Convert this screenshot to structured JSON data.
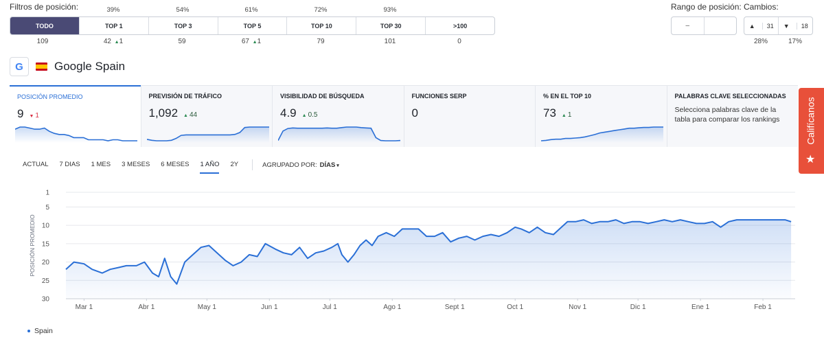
{
  "filters": {
    "title": "Filtros de posición:",
    "buttons": [
      {
        "label": "TODO",
        "pct": "",
        "count": "109",
        "delta": ""
      },
      {
        "label": "TOP 1",
        "pct": "39%",
        "count": "42",
        "delta": "1"
      },
      {
        "label": "TOP 3",
        "pct": "54%",
        "count": "59",
        "delta": ""
      },
      {
        "label": "TOP 5",
        "pct": "61%",
        "count": "67",
        "delta": "1"
      },
      {
        "label": "TOP 10",
        "pct": "72%",
        "count": "79",
        "delta": ""
      },
      {
        "label": "TOP 30",
        "pct": "93%",
        "count": "101",
        "delta": ""
      },
      {
        "label": ">100",
        "pct": "",
        "count": "0",
        "delta": ""
      }
    ]
  },
  "range": {
    "title": "Rango de posición:",
    "value": "–"
  },
  "changes": {
    "title": "Cambios:",
    "up": "31",
    "down": "18",
    "up_pct": "28%",
    "down_pct": "17%"
  },
  "engine": {
    "logo": "G",
    "name": "Google Spain"
  },
  "metrics": [
    {
      "label": "POSICIÓN PROMEDIO",
      "value": "9",
      "delta": "1",
      "direction": "down",
      "spark": [
        62,
        64,
        64,
        63,
        62,
        62,
        63,
        60,
        58,
        57,
        57,
        56,
        54,
        54,
        54,
        52,
        52,
        52,
        52,
        51,
        52,
        52,
        51,
        51,
        51,
        51
      ]
    },
    {
      "label": "PREVISIÓN DE TRÁFICO",
      "value": "1,092",
      "delta": "44",
      "direction": "up",
      "spark": [
        20,
        18,
        17,
        17,
        17,
        18,
        22,
        28,
        29,
        29,
        29,
        29,
        29,
        29,
        29,
        29,
        29,
        29,
        30,
        34,
        44,
        45,
        45,
        45,
        45,
        45
      ]
    },
    {
      "label": "VISIBILIDAD DE BÚSQUEDA",
      "value": "4.9",
      "delta": "0.5",
      "direction": "up",
      "spark": [
        0.5,
        3.8,
        4.7,
        4.9,
        4.8,
        4.8,
        4.8,
        4.8,
        4.8,
        4.8,
        4.9,
        4.8,
        4.8,
        5.0,
        5.2,
        5.2,
        5.2,
        5.0,
        4.9,
        4.8,
        1.5,
        0.5,
        0.4,
        0.4,
        0.4,
        0.5
      ]
    },
    {
      "label": "FUNCIONES SERP",
      "value": "0",
      "delta": "",
      "direction": "",
      "spark": []
    },
    {
      "label": "% EN EL TOP 10",
      "value": "73",
      "delta": "1",
      "direction": "up",
      "spark": [
        38,
        39,
        41,
        42,
        42,
        44,
        44,
        45,
        46,
        48,
        51,
        54,
        58,
        60,
        62,
        64,
        66,
        68,
        70,
        70,
        71,
        72,
        72,
        73,
        73,
        73
      ]
    },
    {
      "label": "PALABRAS CLAVE SELECCIONADAS",
      "value": "",
      "delta": "",
      "direction": "",
      "description": "Selecciona palabras clave de la tabla para comparar los rankings",
      "spark": []
    }
  ],
  "side_tab": {
    "label": "Califícanos",
    "icon": "star-icon"
  },
  "periods": {
    "items": [
      "ACTUAL",
      "7 DIAS",
      "1 MES",
      "3 MESES",
      "6 MESES",
      "1 AÑO",
      "2Y"
    ],
    "active": "1 AÑO",
    "group_label": "AGRUPADO POR:",
    "group_value": "DÍAS"
  },
  "chart_data": {
    "type": "area",
    "title": "",
    "xlabel": "",
    "ylabel": "POSICIÓN PROMEDIO",
    "ylim": [
      1,
      30
    ],
    "y_inverted": true,
    "yticks": [
      1,
      5,
      10,
      15,
      20,
      25,
      30
    ],
    "x_range": [
      "2024-02-21",
      "2025-02-17"
    ],
    "xticks": [
      {
        "label": "Mar 1",
        "date": "2024-03-01"
      },
      {
        "label": "Abr 1",
        "date": "2024-04-01"
      },
      {
        "label": "May 1",
        "date": "2024-05-01"
      },
      {
        "label": "Jun 1",
        "date": "2024-06-01"
      },
      {
        "label": "Jul 1",
        "date": "2024-07-01"
      },
      {
        "label": "Ago 1",
        "date": "2024-08-01"
      },
      {
        "label": "Sept 1",
        "date": "2024-09-01"
      },
      {
        "label": "Oct 1",
        "date": "2024-10-01"
      },
      {
        "label": "Nov 1",
        "date": "2024-11-01"
      },
      {
        "label": "Dic 1",
        "date": "2024-12-01"
      },
      {
        "label": "Ene 1",
        "date": "2025-01-01"
      },
      {
        "label": "Feb 1",
        "date": "2025-02-01"
      }
    ],
    "grid": true,
    "legend_position": "bottom-left",
    "series": [
      {
        "name": "Spain",
        "color": "#2a6fd6",
        "points": [
          [
            "2024-02-21",
            22
          ],
          [
            "2024-02-25",
            20
          ],
          [
            "2024-03-01",
            20.5
          ],
          [
            "2024-03-05",
            22
          ],
          [
            "2024-03-10",
            23
          ],
          [
            "2024-03-14",
            22
          ],
          [
            "2024-03-18",
            21.5
          ],
          [
            "2024-03-22",
            21
          ],
          [
            "2024-03-27",
            21
          ],
          [
            "2024-03-31",
            20
          ],
          [
            "2024-04-04",
            23
          ],
          [
            "2024-04-07",
            24
          ],
          [
            "2024-04-10",
            19
          ],
          [
            "2024-04-13",
            24
          ],
          [
            "2024-04-16",
            26
          ],
          [
            "2024-04-20",
            20
          ],
          [
            "2024-04-24",
            18
          ],
          [
            "2024-04-28",
            16
          ],
          [
            "2024-05-02",
            15.5
          ],
          [
            "2024-05-07",
            18
          ],
          [
            "2024-05-10",
            19.5
          ],
          [
            "2024-05-14",
            21
          ],
          [
            "2024-05-18",
            20
          ],
          [
            "2024-05-22",
            18
          ],
          [
            "2024-05-26",
            18.5
          ],
          [
            "2024-05-30",
            15
          ],
          [
            "2024-06-04",
            16.5
          ],
          [
            "2024-06-08",
            17.5
          ],
          [
            "2024-06-12",
            18
          ],
          [
            "2024-06-16",
            16
          ],
          [
            "2024-06-20",
            19
          ],
          [
            "2024-06-24",
            17.5
          ],
          [
            "2024-06-28",
            17
          ],
          [
            "2024-07-02",
            16
          ],
          [
            "2024-07-05",
            15
          ],
          [
            "2024-07-07",
            18
          ],
          [
            "2024-07-10",
            20
          ],
          [
            "2024-07-13",
            18
          ],
          [
            "2024-07-16",
            15.5
          ],
          [
            "2024-07-19",
            14
          ],
          [
            "2024-07-22",
            15.5
          ],
          [
            "2024-07-25",
            13
          ],
          [
            "2024-07-29",
            12
          ],
          [
            "2024-08-02",
            13
          ],
          [
            "2024-08-06",
            11
          ],
          [
            "2024-08-10",
            11
          ],
          [
            "2024-08-14",
            11
          ],
          [
            "2024-08-18",
            13
          ],
          [
            "2024-08-22",
            13
          ],
          [
            "2024-08-26",
            12
          ],
          [
            "2024-08-30",
            14.5
          ],
          [
            "2024-09-03",
            13.5
          ],
          [
            "2024-09-07",
            13
          ],
          [
            "2024-09-11",
            14
          ],
          [
            "2024-09-15",
            13
          ],
          [
            "2024-09-19",
            12.5
          ],
          [
            "2024-09-23",
            13
          ],
          [
            "2024-09-27",
            12
          ],
          [
            "2024-10-01",
            10.5
          ],
          [
            "2024-10-04",
            11
          ],
          [
            "2024-10-08",
            12
          ],
          [
            "2024-10-12",
            10.5
          ],
          [
            "2024-10-16",
            12
          ],
          [
            "2024-10-20",
            12.5
          ],
          [
            "2024-10-24",
            10.5
          ],
          [
            "2024-10-27",
            9
          ],
          [
            "2024-10-31",
            9
          ],
          [
            "2024-11-04",
            8.5
          ],
          [
            "2024-11-08",
            9.5
          ],
          [
            "2024-11-12",
            9
          ],
          [
            "2024-11-16",
            9
          ],
          [
            "2024-11-20",
            8.5
          ],
          [
            "2024-11-24",
            9.5
          ],
          [
            "2024-11-28",
            9
          ],
          [
            "2024-12-02",
            9
          ],
          [
            "2024-12-06",
            9.5
          ],
          [
            "2024-12-10",
            9
          ],
          [
            "2024-12-14",
            8.5
          ],
          [
            "2024-12-18",
            9
          ],
          [
            "2024-12-22",
            8.5
          ],
          [
            "2024-12-26",
            9
          ],
          [
            "2024-12-30",
            9.5
          ],
          [
            "2025-01-03",
            9.5
          ],
          [
            "2025-01-07",
            9
          ],
          [
            "2025-01-11",
            10.5
          ],
          [
            "2025-01-15",
            9
          ],
          [
            "2025-01-19",
            8.5
          ],
          [
            "2025-01-23",
            8.5
          ],
          [
            "2025-01-27",
            8.5
          ],
          [
            "2025-01-31",
            8.5
          ],
          [
            "2025-02-04",
            8.5
          ],
          [
            "2025-02-08",
            8.5
          ],
          [
            "2025-02-12",
            8.5
          ],
          [
            "2025-02-15",
            9
          ]
        ]
      }
    ]
  }
}
